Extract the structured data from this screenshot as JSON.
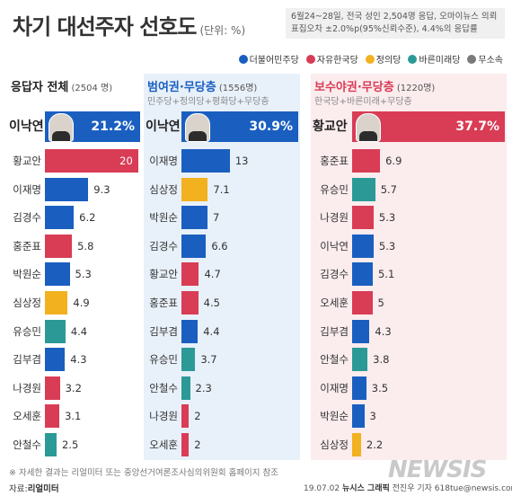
{
  "header": {
    "title": "차기 대선주자 선호도",
    "unit": "(단위: %)",
    "note_line1": "6월24~28일, 전국 성인 2,504명 응답, 오마이뉴스 의뢰",
    "note_line2": "표집오차 ±2.0%p(95%신뢰수준), 4.4%의 응답률"
  },
  "legend": [
    {
      "label": "더불어민주당",
      "color": "#1a5fc0"
    },
    {
      "label": "자유한국당",
      "color": "#d93c55"
    },
    {
      "label": "정의당",
      "color": "#f2b11f"
    },
    {
      "label": "바른미래당",
      "color": "#2b9a96"
    },
    {
      "label": "무소속",
      "color": "#7a7a7a"
    }
  ],
  "colors": {
    "minjoo": "#1a5fc0",
    "hankook": "#d93c55",
    "jeongui": "#f2b11f",
    "bareun": "#2b9a96",
    "panel_mid": "#e8f0f9",
    "panel_right": "#fbecee"
  },
  "chart_data": [
    {
      "type": "bar",
      "title": "응답자 전체",
      "count": "(2504 명)",
      "subtitle": "",
      "title_color": "#222222",
      "max": 21.2,
      "categories": [
        "이낙연",
        "황교안",
        "이재명",
        "김경수",
        "홍준표",
        "박원순",
        "심상정",
        "유승민",
        "김부겸",
        "나경원",
        "오세훈",
        "안철수"
      ],
      "values": [
        21.2,
        20,
        9.3,
        6.2,
        5.8,
        5.3,
        4.9,
        4.4,
        4.3,
        3.2,
        3.1,
        2.5
      ],
      "labels": [
        "21.2%",
        "20",
        "9.3",
        "6.2",
        "5.8",
        "5.3",
        "4.9",
        "4.4",
        "4.3",
        "3.2",
        "3.1",
        "2.5"
      ],
      "parties": [
        "minjoo",
        "hankook",
        "minjoo",
        "minjoo",
        "hankook",
        "minjoo",
        "jeongui",
        "bareun",
        "minjoo",
        "hankook",
        "hankook",
        "bareun"
      ]
    },
    {
      "type": "bar",
      "title": "범여권·무당층",
      "count": "(1556명)",
      "subtitle": "민주당+정의당+평화당+무당층",
      "title_color": "#1a5fc0",
      "max": 30.9,
      "categories": [
        "이낙연",
        "이재명",
        "심상정",
        "박원순",
        "김경수",
        "황교안",
        "홍준표",
        "김부겸",
        "유승민",
        "안철수",
        "나경원",
        "오세훈"
      ],
      "values": [
        30.9,
        13,
        7.1,
        7,
        6.6,
        4.7,
        4.5,
        4.4,
        3.7,
        2.3,
        2,
        2
      ],
      "labels": [
        "30.9%",
        "13",
        "7.1",
        "7",
        "6.6",
        "4.7",
        "4.5",
        "4.4",
        "3.7",
        "2.3",
        "2",
        "2"
      ],
      "parties": [
        "minjoo",
        "minjoo",
        "jeongui",
        "minjoo",
        "minjoo",
        "hankook",
        "hankook",
        "minjoo",
        "bareun",
        "bareun",
        "hankook",
        "hankook"
      ]
    },
    {
      "type": "bar",
      "title": "보수야권·무당층",
      "count": "(1220명)",
      "subtitle": "한국당+바른미래+무당층",
      "title_color": "#d93c55",
      "max": 37.7,
      "categories": [
        "황교안",
        "홍준표",
        "유승민",
        "나경원",
        "이낙연",
        "김경수",
        "오세훈",
        "김부겸",
        "안철수",
        "이재명",
        "박원순",
        "심상정"
      ],
      "values": [
        37.7,
        6.9,
        5.7,
        5.3,
        5.3,
        5.1,
        5,
        4.3,
        3.8,
        3.5,
        3,
        2.2
      ],
      "labels": [
        "37.7%",
        "6.9",
        "5.7",
        "5.3",
        "5.3",
        "5.1",
        "5",
        "4.3",
        "3.8",
        "3.5",
        "3",
        "2.2"
      ],
      "parties": [
        "hankook",
        "hankook",
        "bareun",
        "hankook",
        "minjoo",
        "minjoo",
        "hankook",
        "minjoo",
        "bareun",
        "minjoo",
        "minjoo",
        "jeongui"
      ]
    }
  ],
  "footer": {
    "note": "※ 자세한 결과는 리얼미터 또는 중앙선거여론조사심의위원회 홈페이지 참조",
    "source_label": "자료:",
    "source": "리얼미터",
    "date": "19.07.02",
    "agency": "뉴시스 그래픽",
    "reporter": "전진우 기자 618tue@newsis.com",
    "logo": "NEWSIS"
  }
}
